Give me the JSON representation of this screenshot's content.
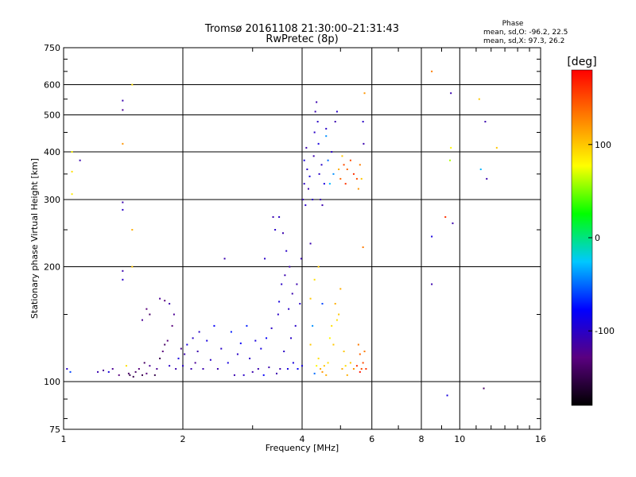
{
  "chart_data": {
    "type": "scatter",
    "title": "Tromsø 20161108 21:30:00–21:31:43",
    "subtitle": "RwPretec (8p)",
    "phase_stats": {
      "heading": "Phase",
      "line_o": "mean, sd,O: -96.2, 22.5",
      "line_x": "mean, sd,X:  97.3, 26.2"
    },
    "xlabel": "Frequency [MHz]",
    "ylabel": "Stationary phase Virtual Height [km]",
    "x_scale": "log",
    "y_scale": "log",
    "xlim": [
      1,
      16
    ],
    "ylim": [
      75,
      750
    ],
    "x_ticks": [
      1,
      2,
      4,
      6,
      8,
      10,
      16
    ],
    "x_tick_labels": [
      "1",
      "2",
      "4",
      "6",
      "8",
      "10",
      "16"
    ],
    "y_ticks": [
      75,
      100,
      200,
      300,
      400,
      500,
      600,
      750
    ],
    "y_tick_labels": [
      "75",
      "100",
      "200",
      "300",
      "400",
      "500",
      "600",
      "750"
    ],
    "grid": true,
    "colorbar": {
      "label": "[deg]",
      "range": [
        -180,
        180
      ],
      "ticks": [
        100,
        0,
        -100
      ],
      "tick_labels": [
        "100",
        "0",
        "-100"
      ],
      "colors": [
        "#000000",
        "#5a0080",
        "#0000ff",
        "#00c8ff",
        "#00ff00",
        "#ffff00",
        "#ff8000",
        "#ff0000"
      ]
    },
    "points": [
      [
        1.02,
        108,
        -100
      ],
      [
        1.04,
        106,
        -60
      ],
      [
        1.05,
        400,
        80
      ],
      [
        1.05,
        355,
        90
      ],
      [
        1.05,
        310,
        85
      ],
      [
        1.1,
        380,
        -110
      ],
      [
        1.22,
        106,
        -110
      ],
      [
        1.26,
        107,
        -120
      ],
      [
        1.3,
        106,
        -90
      ],
      [
        1.33,
        108,
        -120
      ],
      [
        1.38,
        104,
        -130
      ],
      [
        1.41,
        545,
        -110
      ],
      [
        1.41,
        515,
        -120
      ],
      [
        1.41,
        420,
        120
      ],
      [
        1.41,
        295,
        -110
      ],
      [
        1.41,
        282,
        -100
      ],
      [
        1.41,
        195,
        -110
      ],
      [
        1.41,
        185,
        -100
      ],
      [
        1.44,
        110,
        90
      ],
      [
        1.46,
        105,
        -140
      ],
      [
        1.47,
        104,
        -150
      ],
      [
        1.5,
        103,
        -150
      ],
      [
        1.49,
        600,
        90
      ],
      [
        1.49,
        250,
        110
      ],
      [
        1.49,
        200,
        100
      ],
      [
        1.52,
        106,
        -140
      ],
      [
        1.55,
        108,
        -130
      ],
      [
        1.58,
        104,
        -150
      ],
      [
        1.6,
        112,
        -140
      ],
      [
        1.62,
        105,
        -130
      ],
      [
        1.65,
        110,
        -120
      ],
      [
        1.58,
        145,
        -120
      ],
      [
        1.62,
        155,
        -130
      ],
      [
        1.65,
        150,
        -140
      ],
      [
        1.7,
        104,
        -150
      ],
      [
        1.72,
        108,
        -120
      ],
      [
        1.75,
        115,
        -150
      ],
      [
        1.78,
        120,
        -130
      ],
      [
        1.8,
        125,
        -140
      ],
      [
        1.83,
        128,
        -130
      ],
      [
        1.85,
        110,
        -100
      ],
      [
        1.75,
        165,
        -120
      ],
      [
        1.8,
        163,
        -130
      ],
      [
        1.85,
        160,
        -110
      ],
      [
        1.9,
        150,
        -120
      ],
      [
        1.88,
        140,
        -130
      ],
      [
        1.92,
        108,
        -110
      ],
      [
        1.95,
        115,
        -90
      ],
      [
        1.98,
        122,
        -120
      ],
      [
        2.0,
        110,
        -100
      ],
      [
        2.02,
        118,
        -110
      ],
      [
        2.05,
        125,
        -90
      ],
      [
        2.1,
        108,
        -110
      ],
      [
        2.12,
        130,
        -100
      ],
      [
        2.15,
        112,
        -120
      ],
      [
        2.18,
        120,
        -110
      ],
      [
        2.2,
        135,
        -100
      ],
      [
        2.25,
        108,
        -110
      ],
      [
        2.3,
        128,
        -90
      ],
      [
        2.35,
        114,
        -100
      ],
      [
        2.4,
        140,
        -80
      ],
      [
        2.45,
        108,
        -110
      ],
      [
        2.5,
        122,
        -100
      ],
      [
        2.55,
        210,
        -110
      ],
      [
        2.6,
        112,
        -90
      ],
      [
        2.65,
        135,
        -70
      ],
      [
        2.7,
        104,
        -110
      ],
      [
        2.75,
        118,
        -100
      ],
      [
        2.8,
        126,
        -80
      ],
      [
        2.85,
        104,
        -100
      ],
      [
        2.9,
        140,
        -70
      ],
      [
        2.95,
        115,
        -100
      ],
      [
        3.0,
        106,
        -110
      ],
      [
        3.05,
        128,
        -90
      ],
      [
        3.1,
        108,
        -110
      ],
      [
        3.15,
        122,
        -90
      ],
      [
        3.2,
        104,
        -80
      ],
      [
        3.22,
        210,
        -100
      ],
      [
        3.25,
        130,
        -80
      ],
      [
        3.3,
        109,
        -110
      ],
      [
        3.35,
        138,
        -100
      ],
      [
        3.38,
        270,
        -110
      ],
      [
        3.42,
        250,
        -100
      ],
      [
        3.45,
        105,
        -110
      ],
      [
        3.48,
        150,
        -100
      ],
      [
        3.5,
        162,
        -90
      ],
      [
        3.5,
        270,
        -100
      ],
      [
        3.52,
        108,
        -110
      ],
      [
        3.55,
        180,
        -100
      ],
      [
        3.58,
        245,
        -110
      ],
      [
        3.6,
        120,
        -100
      ],
      [
        3.62,
        190,
        -110
      ],
      [
        3.65,
        220,
        -100
      ],
      [
        3.68,
        108,
        -90
      ],
      [
        3.7,
        155,
        -100
      ],
      [
        3.72,
        200,
        -110
      ],
      [
        3.75,
        130,
        -100
      ],
      [
        3.78,
        170,
        -110
      ],
      [
        3.8,
        112,
        -90
      ],
      [
        3.85,
        140,
        -100
      ],
      [
        3.88,
        180,
        -110
      ],
      [
        3.9,
        108,
        -80
      ],
      [
        3.95,
        160,
        -100
      ],
      [
        3.98,
        210,
        -110
      ],
      [
        4.0,
        110,
        -90
      ],
      [
        4.02,
        300,
        -110
      ],
      [
        4.05,
        330,
        -100
      ],
      [
        4.05,
        380,
        -90
      ],
      [
        4.08,
        290,
        -100
      ],
      [
        4.1,
        410,
        -110
      ],
      [
        4.12,
        360,
        -100
      ],
      [
        4.15,
        320,
        -110
      ],
      [
        4.18,
        345,
        -90
      ],
      [
        4.2,
        230,
        -110
      ],
      [
        4.25,
        300,
        -100
      ],
      [
        4.28,
        390,
        -110
      ],
      [
        4.3,
        450,
        -100
      ],
      [
        4.32,
        510,
        -110
      ],
      [
        4.35,
        540,
        -110
      ],
      [
        4.38,
        480,
        -100
      ],
      [
        4.4,
        420,
        -90
      ],
      [
        4.42,
        350,
        -100
      ],
      [
        4.45,
        300,
        -110
      ],
      [
        4.48,
        370,
        -100
      ],
      [
        4.5,
        290,
        -110
      ],
      [
        4.55,
        330,
        -90
      ],
      [
        4.6,
        460,
        -100
      ],
      [
        4.6,
        440,
        -40
      ],
      [
        4.65,
        380,
        -50
      ],
      [
        4.7,
        330,
        -30
      ],
      [
        4.75,
        400,
        -100
      ],
      [
        4.8,
        350,
        -40
      ],
      [
        4.85,
        480,
        -110
      ],
      [
        4.9,
        510,
        -100
      ],
      [
        4.95,
        360,
        110
      ],
      [
        5.0,
        340,
        140
      ],
      [
        5.05,
        390,
        100
      ],
      [
        5.1,
        370,
        150
      ],
      [
        5.15,
        330,
        160
      ],
      [
        5.2,
        360,
        140
      ],
      [
        5.3,
        380,
        150
      ],
      [
        5.4,
        350,
        160
      ],
      [
        5.5,
        340,
        150
      ],
      [
        5.55,
        320,
        120
      ],
      [
        5.6,
        370,
        130
      ],
      [
        5.65,
        340,
        100
      ],
      [
        5.7,
        480,
        -100
      ],
      [
        5.72,
        420,
        -110
      ],
      [
        5.75,
        570,
        120
      ],
      [
        5.7,
        225,
        130
      ],
      [
        4.3,
        105,
        -50
      ],
      [
        4.35,
        110,
        80
      ],
      [
        4.4,
        115,
        90
      ],
      [
        4.45,
        108,
        110
      ],
      [
        4.5,
        106,
        120
      ],
      [
        4.55,
        110,
        100
      ],
      [
        4.6,
        104,
        110
      ],
      [
        4.65,
        112,
        90
      ],
      [
        4.7,
        130,
        80
      ],
      [
        4.75,
        140,
        90
      ],
      [
        4.8,
        125,
        100
      ],
      [
        4.85,
        160,
        110
      ],
      [
        4.9,
        145,
        90
      ],
      [
        4.95,
        150,
        100
      ],
      [
        5.0,
        175,
        110
      ],
      [
        5.05,
        108,
        110
      ],
      [
        5.1,
        120,
        100
      ],
      [
        5.15,
        110,
        90
      ],
      [
        5.2,
        104,
        110
      ],
      [
        5.3,
        112,
        100
      ],
      [
        5.4,
        108,
        120
      ],
      [
        5.5,
        110,
        160
      ],
      [
        5.6,
        106,
        170
      ],
      [
        5.65,
        108,
        150
      ],
      [
        5.55,
        125,
        130
      ],
      [
        5.6,
        118,
        140
      ],
      [
        5.7,
        112,
        150
      ],
      [
        5.75,
        120,
        130
      ],
      [
        5.8,
        108,
        160
      ],
      [
        4.2,
        125,
        100
      ],
      [
        4.25,
        140,
        -40
      ],
      [
        4.2,
        165,
        100
      ],
      [
        4.3,
        185,
        90
      ],
      [
        4.4,
        200,
        100
      ],
      [
        4.5,
        160,
        -60
      ],
      [
        8.5,
        650,
        130
      ],
      [
        8.5,
        240,
        -90
      ],
      [
        8.5,
        180,
        -110
      ],
      [
        9.2,
        270,
        160
      ],
      [
        9.3,
        92,
        -90
      ],
      [
        9.5,
        570,
        -110
      ],
      [
        9.5,
        410,
        80
      ],
      [
        9.45,
        380,
        60
      ],
      [
        9.6,
        260,
        -110
      ],
      [
        11.2,
        550,
        100
      ],
      [
        11.3,
        360,
        -30
      ],
      [
        11.6,
        480,
        -110
      ],
      [
        11.7,
        340,
        -110
      ],
      [
        12.4,
        410,
        100
      ],
      [
        11.5,
        96,
        -140
      ]
    ]
  }
}
